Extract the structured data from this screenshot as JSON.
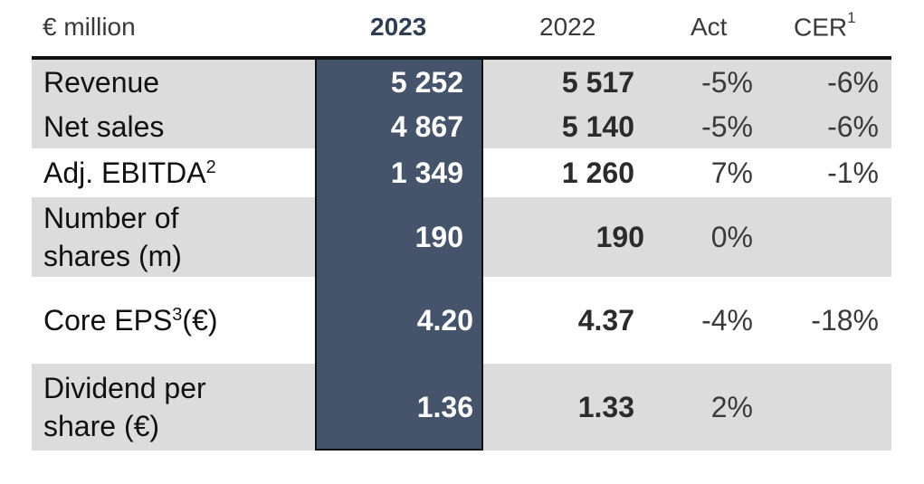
{
  "header": {
    "label_col": "€ million",
    "col_2023": "2023",
    "col_2022": "2022",
    "col_act": "Act",
    "col_cer": "CER",
    "col_cer_note": "1"
  },
  "rows": [
    {
      "label": "Revenue",
      "note": "",
      "v2023": "5 252",
      "v2022": "5 517",
      "act": "-5%",
      "cer": "-6%"
    },
    {
      "label": "Net sales",
      "note": "",
      "v2023": "4 867",
      "v2022": "5 140",
      "act": "-5%",
      "cer": "-6%"
    },
    {
      "label": "Adj. EBITDA",
      "note": "2",
      "v2023": "1 349",
      "v2022": "1 260",
      "act": "7%",
      "cer": "-1%"
    },
    {
      "label": "Number of shares (m)",
      "note": "",
      "v2023": "190",
      "v2022": "190",
      "act": "0%",
      "cer": ""
    },
    {
      "label": "Core EPS",
      "note": "3",
      "label_suffix": " (€)",
      "v2023": "4.20",
      "v2022": "4.37",
      "act": "-4%",
      "cer": "-18%"
    },
    {
      "label": "Dividend per share (€)",
      "note": "",
      "v2023": "1.36",
      "v2022": "1.33",
      "act": "2%",
      "cer": ""
    }
  ],
  "colors": {
    "highlight_column": "#45546a",
    "row_shade": "#dcdcdc",
    "header_2023": "#2f3e52"
  }
}
